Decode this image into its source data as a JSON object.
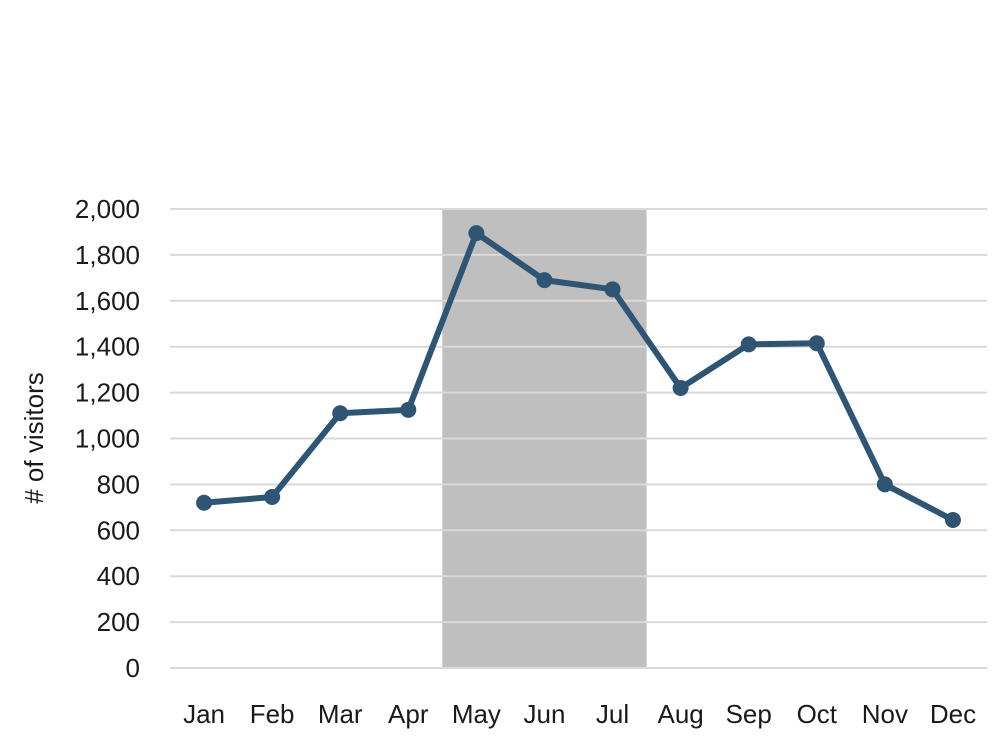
{
  "chart_data": {
    "type": "line",
    "title": "",
    "xlabel": "",
    "ylabel": "# of visitors",
    "categories": [
      "Jan",
      "Feb",
      "Mar",
      "Apr",
      "May",
      "Jun",
      "Jul",
      "Aug",
      "Sep",
      "Oct",
      "Nov",
      "Dec"
    ],
    "series": [
      {
        "values": [
          720,
          745,
          1110,
          1125,
          1895,
          1690,
          1650,
          1220,
          1410,
          1415,
          800,
          645
        ]
      }
    ],
    "ylim": [
      0,
      2000
    ],
    "yticks": [
      0,
      200,
      400,
      600,
      800,
      1000,
      1200,
      1400,
      1600,
      1800,
      2000
    ],
    "ytick_labels": [
      "0",
      "200",
      "400",
      "600",
      "800",
      "1,000",
      "1,200",
      "1,400",
      "1,600",
      "1,800",
      "2,000"
    ],
    "highlight_range": [
      "May",
      "Jul"
    ],
    "grid": true,
    "colors": {
      "line": "#2e5573",
      "highlight": "#bfbfbf",
      "grid": "#d9d9d9"
    }
  }
}
